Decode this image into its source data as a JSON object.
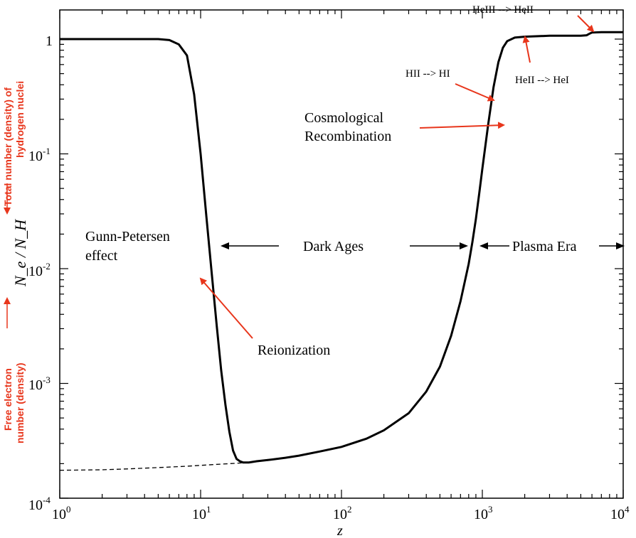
{
  "chart_data": {
    "type": "line",
    "x_scale": "log",
    "y_scale": "log",
    "xlim": [
      1,
      10000
    ],
    "ylim": [
      0.0001,
      1.5
    ],
    "xlabel": "z",
    "ylabel": "N_e / N_H",
    "x_ticks": [
      {
        "base": "10",
        "exp": "0"
      },
      {
        "base": "10",
        "exp": "1"
      },
      {
        "base": "10",
        "exp": "2"
      },
      {
        "base": "10",
        "exp": "3"
      },
      {
        "base": "10",
        "exp": "4"
      }
    ],
    "y_ticks": [
      {
        "base": "10",
        "exp": "-4"
      },
      {
        "base": "10",
        "exp": "-3"
      },
      {
        "base": "10",
        "exp": "-2"
      },
      {
        "base": "10",
        "exp": "-1"
      },
      {
        "base": "1",
        "exp": ""
      }
    ],
    "series": [
      {
        "style": "solid",
        "x": [
          1,
          5,
          6,
          7,
          8,
          9,
          10,
          11,
          12,
          13,
          14,
          15,
          16,
          17,
          18,
          19,
          20,
          22,
          25,
          30,
          40,
          50,
          70,
          100,
          150,
          200,
          300,
          400,
          500,
          600,
          700,
          800,
          850,
          900,
          950,
          1000,
          1100,
          1200,
          1300,
          1400,
          1500,
          1700,
          2000,
          2500,
          3000,
          4000,
          5000,
          5500,
          5800,
          6000,
          7000,
          10000
        ],
        "y": [
          1.0,
          1.0,
          0.98,
          0.9,
          0.72,
          0.33,
          0.1,
          0.028,
          0.009,
          0.0032,
          0.0013,
          0.00065,
          0.00038,
          0.00026,
          0.00022,
          0.00021,
          0.000205,
          0.000205,
          0.00021,
          0.000215,
          0.000225,
          0.000235,
          0.000255,
          0.00028,
          0.00033,
          0.00039,
          0.00055,
          0.00085,
          0.0014,
          0.0026,
          0.0052,
          0.011,
          0.017,
          0.027,
          0.045,
          0.074,
          0.18,
          0.38,
          0.63,
          0.84,
          0.96,
          1.03,
          1.05,
          1.06,
          1.07,
          1.07,
          1.07,
          1.08,
          1.12,
          1.14,
          1.15,
          1.15
        ]
      },
      {
        "style": "dashed",
        "x": [
          1,
          2,
          3,
          5,
          8,
          12,
          16,
          20
        ],
        "y": [
          0.000175,
          0.000177,
          0.00018,
          0.000185,
          0.00019,
          0.000196,
          0.0002,
          0.000203
        ]
      }
    ],
    "annotations": {
      "gunn_petersen_line1": "Gunn-Petersen",
      "gunn_petersen_line2": "effect",
      "dark_ages": "Dark Ages",
      "plasma_era": "Plasma Era",
      "reionization": "Reionization",
      "cosmological_line1": "Cosmological",
      "cosmological_line2": "Recombination",
      "hii_hi": "HII --> HI",
      "heii_hei": "HeII --> HeI",
      "heiii_heii": "HeIII --> HeII"
    },
    "side_labels": {
      "top_line1": "Total number (density)  of",
      "top_line2": "hydrogen nuclei",
      "bottom_line1": "Free electron",
      "bottom_line2": "number (density)"
    },
    "colors": {
      "curve": "#000000",
      "arrow_red": "#e8361c",
      "side_label_red": "#e8361c"
    }
  }
}
